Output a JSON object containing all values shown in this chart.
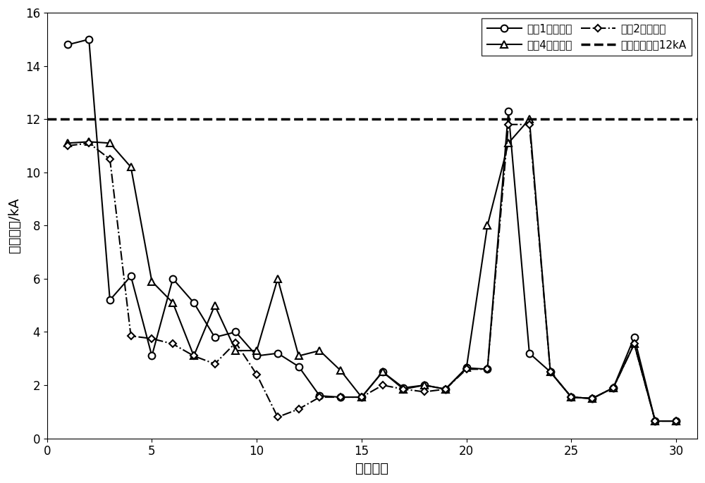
{
  "x": [
    1,
    2,
    3,
    4,
    5,
    6,
    7,
    8,
    9,
    10,
    11,
    12,
    13,
    14,
    15,
    16,
    17,
    18,
    19,
    20,
    21,
    22,
    23,
    24,
    25,
    26,
    27,
    28,
    29,
    30
  ],
  "s1_y": [
    14.8,
    15.0,
    5.2,
    6.1,
    3.1,
    6.0,
    5.1,
    3.8,
    4.0,
    3.1,
    3.2,
    2.7,
    1.6,
    1.55,
    1.55,
    2.5,
    1.9,
    2.0,
    1.85,
    2.65,
    2.6,
    12.3,
    3.2,
    2.5,
    1.55,
    1.5,
    1.9,
    3.8,
    0.65,
    0.65
  ],
  "s4_y": [
    11.1,
    11.15,
    11.1,
    10.2,
    5.9,
    5.1,
    3.1,
    5.0,
    3.3,
    3.3,
    6.0,
    3.1,
    3.3,
    2.55,
    1.55,
    2.5,
    1.85,
    2.0,
    1.85,
    2.65,
    8.0,
    11.1,
    12.0,
    2.5,
    1.55,
    1.5,
    1.9,
    3.55,
    0.65,
    0.65
  ],
  "s2_y": [
    11.0,
    11.1,
    10.5,
    3.85,
    3.75,
    3.55,
    3.1,
    2.8,
    3.6,
    2.4,
    0.8,
    1.1,
    1.55,
    1.55,
    1.55,
    2.0,
    1.85,
    1.75,
    1.85,
    2.6,
    2.6,
    11.8,
    11.8,
    2.5,
    1.55,
    1.5,
    1.9,
    3.55,
    0.65,
    0.65
  ],
  "limit_y": 12.0,
  "xlim": [
    0,
    31
  ],
  "ylim": [
    0,
    16
  ],
  "xticks": [
    0,
    5,
    10,
    15,
    20,
    25,
    30
  ],
  "yticks": [
    0,
    2,
    4,
    6,
    8,
    10,
    12,
    14,
    16
  ],
  "xlabel": "节点编号",
  "ylabel": "短路电流/kA",
  "legend_s1": "方式1短路电流",
  "legend_s4": "方式4短路电流",
  "legend_s2": "方式2短路电流",
  "legend_limit": "短路电流限额12kA",
  "figsize": [
    10.0,
    6.86
  ],
  "dpi": 100
}
